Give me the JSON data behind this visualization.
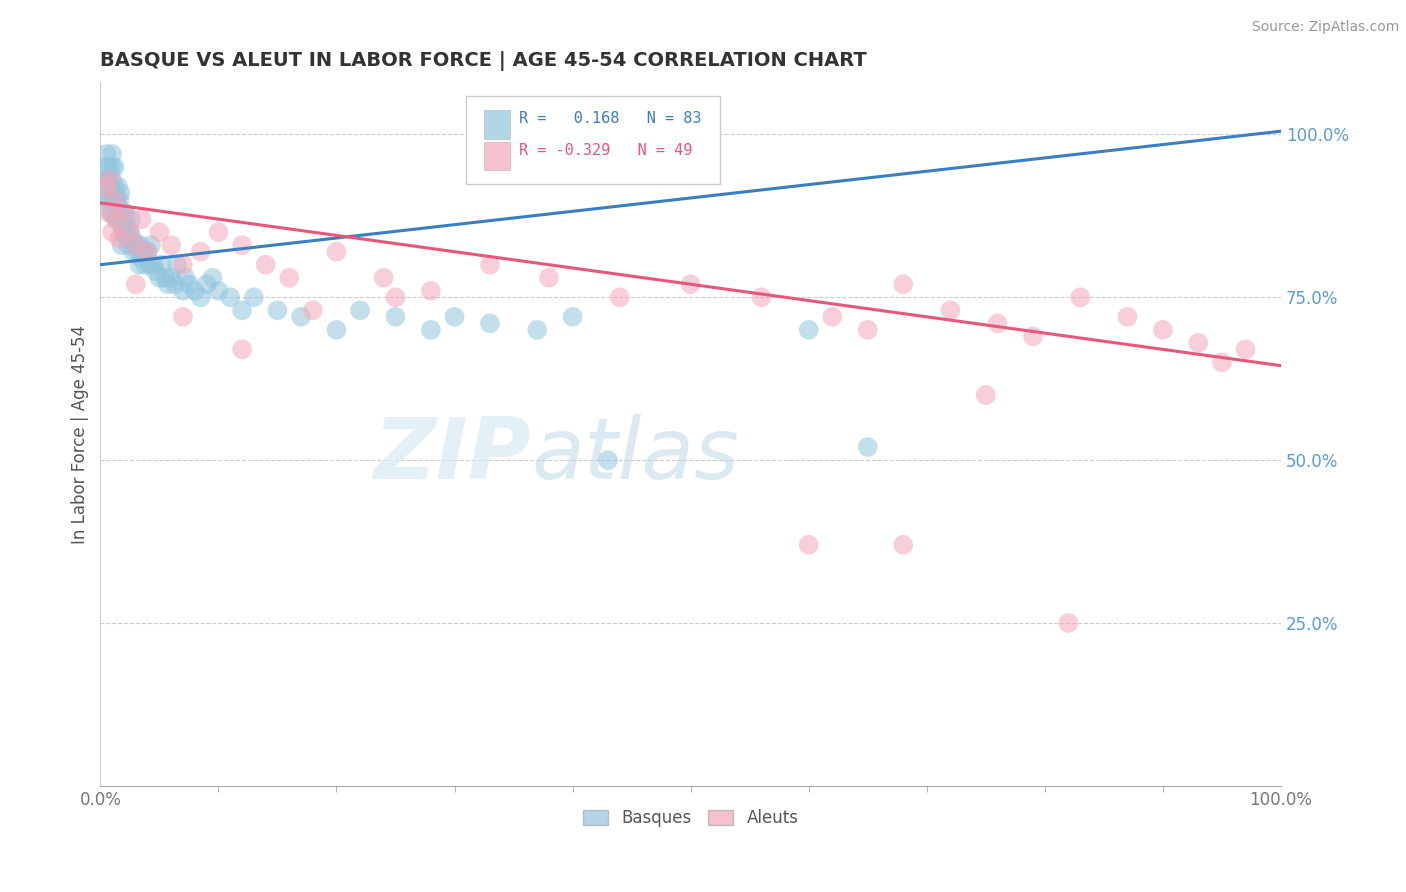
{
  "title": "BASQUE VS ALEUT IN LABOR FORCE | AGE 45-54 CORRELATION CHART",
  "source_text": "Source: ZipAtlas.com",
  "ylabel": "In Labor Force | Age 45-54",
  "xlim": [
    0.0,
    1.0
  ],
  "ylim": [
    0.0,
    1.08
  ],
  "y_ticks_right": [
    1.0,
    0.75,
    0.5,
    0.25
  ],
  "y_tick_labels_right": [
    "100.0%",
    "75.0%",
    "50.0%",
    "25.0%"
  ],
  "legend_R_basque": "0.168",
  "legend_N_basque": "83",
  "legend_R_aleut": "-0.329",
  "legend_N_aleut": "49",
  "basque_color": "#92c5de",
  "aleut_color": "#f4a6b8",
  "basque_line_color": "#3a7fc1",
  "aleut_line_color": "#e8567a",
  "background_color": "#ffffff",
  "grid_color": "#cccccc",
  "watermark_zip": "ZIP",
  "watermark_atlas": "atlas",
  "basques_x": [
    0.005,
    0.005,
    0.005,
    0.005,
    0.007,
    0.007,
    0.008,
    0.008,
    0.009,
    0.009,
    0.01,
    0.01,
    0.01,
    0.01,
    0.01,
    0.012,
    0.012,
    0.013,
    0.013,
    0.014,
    0.015,
    0.015,
    0.016,
    0.016,
    0.017,
    0.017,
    0.018,
    0.018,
    0.019,
    0.02,
    0.021,
    0.021,
    0.022,
    0.023,
    0.024,
    0.025,
    0.026,
    0.027,
    0.028,
    0.03,
    0.031,
    0.032,
    0.033,
    0.034,
    0.035,
    0.037,
    0.038,
    0.04,
    0.042,
    0.043,
    0.045,
    0.047,
    0.05,
    0.052,
    0.055,
    0.057,
    0.06,
    0.063,
    0.065,
    0.07,
    0.072,
    0.075,
    0.08,
    0.085,
    0.09,
    0.095,
    0.1,
    0.11,
    0.12,
    0.13,
    0.15,
    0.17,
    0.2,
    0.22,
    0.25,
    0.28,
    0.3,
    0.33,
    0.37,
    0.4,
    0.43,
    0.6,
    0.65
  ],
  "basques_y": [
    0.97,
    0.95,
    0.93,
    0.9,
    0.95,
    0.93,
    0.92,
    0.9,
    0.91,
    0.88,
    0.97,
    0.95,
    0.93,
    0.91,
    0.88,
    0.95,
    0.92,
    0.9,
    0.87,
    0.88,
    0.92,
    0.89,
    0.9,
    0.87,
    0.91,
    0.88,
    0.86,
    0.83,
    0.85,
    0.87,
    0.88,
    0.85,
    0.86,
    0.84,
    0.83,
    0.85,
    0.87,
    0.84,
    0.82,
    0.83,
    0.83,
    0.82,
    0.8,
    0.83,
    0.81,
    0.82,
    0.8,
    0.82,
    0.8,
    0.83,
    0.8,
    0.79,
    0.78,
    0.8,
    0.78,
    0.77,
    0.78,
    0.77,
    0.8,
    0.76,
    0.78,
    0.77,
    0.76,
    0.75,
    0.77,
    0.78,
    0.76,
    0.75,
    0.73,
    0.75,
    0.73,
    0.72,
    0.7,
    0.73,
    0.72,
    0.7,
    0.72,
    0.71,
    0.7,
    0.72,
    0.5,
    0.7,
    0.52
  ],
  "aleuts_x": [
    0.005,
    0.007,
    0.008,
    0.01,
    0.012,
    0.014,
    0.016,
    0.02,
    0.025,
    0.03,
    0.035,
    0.04,
    0.05,
    0.06,
    0.07,
    0.085,
    0.1,
    0.12,
    0.14,
    0.16,
    0.2,
    0.24,
    0.28,
    0.33,
    0.38,
    0.44,
    0.5,
    0.56,
    0.62,
    0.65,
    0.68,
    0.72,
    0.76,
    0.79,
    0.83,
    0.87,
    0.9,
    0.93,
    0.95,
    0.97,
    0.03,
    0.07,
    0.12,
    0.18,
    0.25,
    0.6,
    0.68,
    0.75,
    0.82
  ],
  "aleuts_y": [
    0.92,
    0.88,
    0.93,
    0.85,
    0.9,
    0.87,
    0.84,
    0.88,
    0.85,
    0.83,
    0.87,
    0.82,
    0.85,
    0.83,
    0.8,
    0.82,
    0.85,
    0.83,
    0.8,
    0.78,
    0.82,
    0.78,
    0.76,
    0.8,
    0.78,
    0.75,
    0.77,
    0.75,
    0.72,
    0.7,
    0.77,
    0.73,
    0.71,
    0.69,
    0.75,
    0.72,
    0.7,
    0.68,
    0.65,
    0.67,
    0.77,
    0.72,
    0.67,
    0.73,
    0.75,
    0.37,
    0.37,
    0.6,
    0.25
  ]
}
